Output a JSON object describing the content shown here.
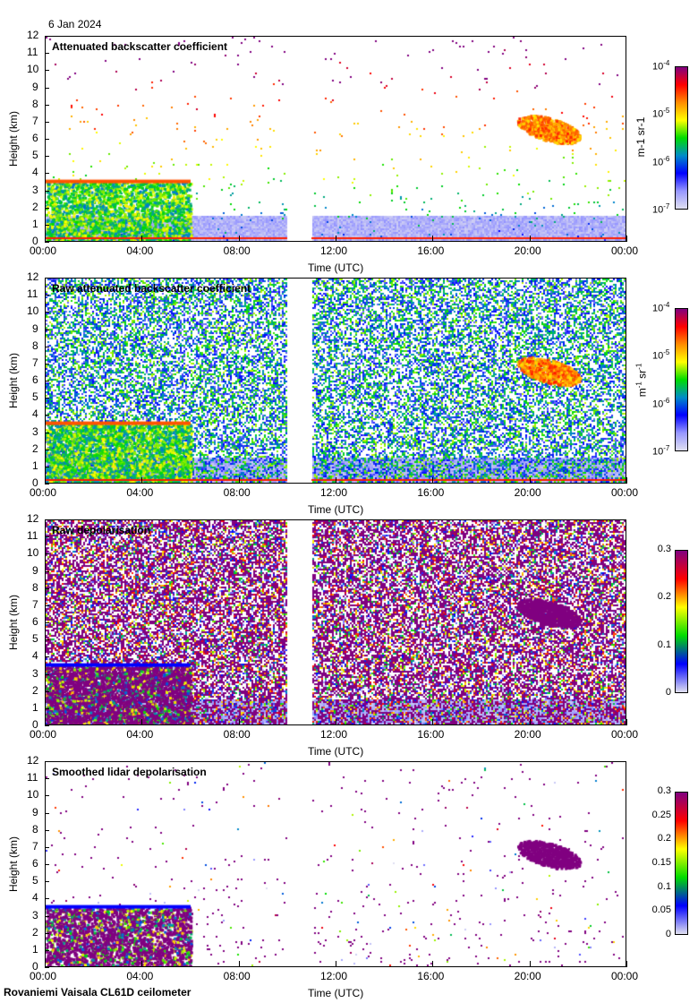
{
  "date": "6 Jan 2024",
  "footer": "Rovaniemi Vaisala CL61D ceilometer",
  "chart_data": [
    {
      "type": "heatmap",
      "title": "Attenuated backscatter coefficient",
      "xlabel": "Time (UTC)",
      "ylabel": "Height (km)",
      "xticks": [
        "00:00",
        "04:00",
        "08:00",
        "12:00",
        "16:00",
        "20:00",
        "00:00"
      ],
      "yticks": [
        "0",
        "1",
        "2",
        "3",
        "4",
        "5",
        "6",
        "7",
        "8",
        "9",
        "10",
        "11",
        "12"
      ],
      "ylim": [
        0,
        12
      ],
      "xlim_hours": [
        0,
        24
      ],
      "data_gap_hours": [
        10,
        11
      ],
      "colorbar": {
        "scale": "log",
        "range": [
          1e-07,
          0.0001
        ],
        "ticks": [
          {
            "b": "10",
            "e": "-7"
          },
          {
            "b": "10",
            "e": "-6"
          },
          {
            "b": "10",
            "e": "-5"
          },
          {
            "b": "10",
            "e": "-4"
          }
        ],
        "label": "m-1 sr-1",
        "units": {
          "m": "m",
          "me": "-1",
          "s": "sr",
          "se": "-1"
        }
      },
      "features": [
        {
          "name": "low cloud",
          "hours": [
            0,
            6
          ],
          "km": [
            0,
            3.6
          ]
        },
        {
          "name": "ice cloud",
          "hours": [
            19.5,
            22.5
          ],
          "km": [
            5.8,
            7.6
          ]
        }
      ]
    },
    {
      "type": "heatmap",
      "title": "Raw attenuated backscatter coefficient",
      "xlabel": "Time (UTC)",
      "ylabel": "Height (km)",
      "xticks": [
        "00:00",
        "04:00",
        "08:00",
        "12:00",
        "16:00",
        "20:00",
        "00:00"
      ],
      "yticks": [
        "0",
        "1",
        "2",
        "3",
        "4",
        "5",
        "6",
        "7",
        "8",
        "9",
        "10",
        "11",
        "12"
      ],
      "ylim": [
        0,
        12
      ],
      "colorbar": {
        "scale": "log",
        "range": [
          1e-07,
          0.0001
        ],
        "ticks": [
          {
            "b": "10",
            "e": "-7"
          },
          {
            "b": "10",
            "e": "-6"
          },
          {
            "b": "10",
            "e": "-5"
          },
          {
            "b": "10",
            "e": "-4"
          }
        ],
        "units": {
          "m": "m",
          "me": "-1",
          "s": "sr",
          "se": "-1"
        }
      }
    },
    {
      "type": "heatmap",
      "title": "Raw depolarisation",
      "xlabel": "Time (UTC)",
      "ylabel": "Height (km)",
      "xticks": [
        "00:00",
        "04:00",
        "08:00",
        "12:00",
        "16:00",
        "20:00",
        "00:00"
      ],
      "yticks": [
        "0",
        "1",
        "2",
        "3",
        "4",
        "5",
        "6",
        "7",
        "8",
        "9",
        "10",
        "11",
        "12"
      ],
      "ylim": [
        0,
        12
      ],
      "colorbar": {
        "scale": "linear",
        "range": [
          0,
          0.3
        ],
        "ticks": [
          "0",
          "0.1",
          "0.2",
          "0.3"
        ]
      }
    },
    {
      "type": "heatmap",
      "title": "Smoothed lidar depolarisation",
      "xlabel": "Time (UTC)",
      "ylabel": "Height (km)",
      "xticks": [
        "00:00",
        "04:00",
        "08:00",
        "12:00",
        "16:00",
        "20:00",
        "00:00"
      ],
      "yticks": [
        "0",
        "1",
        "2",
        "3",
        "4",
        "5",
        "6",
        "7",
        "8",
        "9",
        "10",
        "11",
        "12"
      ],
      "ylim": [
        0,
        12
      ],
      "colorbar": {
        "scale": "linear",
        "range": [
          0,
          0.3
        ],
        "ticks": [
          "0",
          "0.05",
          "0.1",
          "0.15",
          "0.2",
          "0.25",
          "0.3"
        ]
      }
    }
  ]
}
